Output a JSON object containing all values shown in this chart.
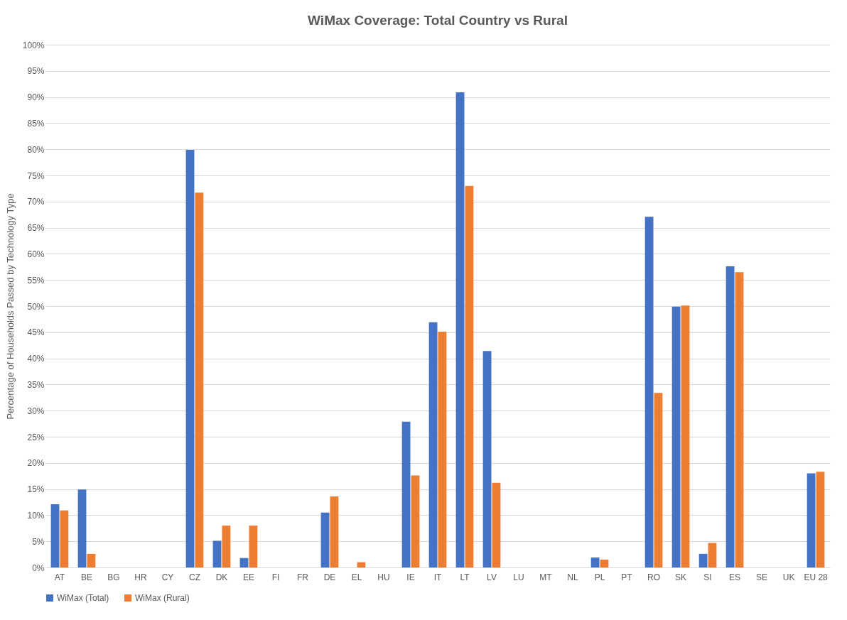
{
  "chart_data": {
    "type": "bar",
    "title": "WiMax Coverage: Total Country vs Rural",
    "ylabel": "Percentage of Households Passed by Technology Type",
    "categories": [
      "AT",
      "BE",
      "BG",
      "HR",
      "CY",
      "CZ",
      "DK",
      "EE",
      "FI",
      "FR",
      "DE",
      "EL",
      "HU",
      "IE",
      "IT",
      "LT",
      "LV",
      "LU",
      "MT",
      "NL",
      "PL",
      "PT",
      "RO",
      "SK",
      "SI",
      "ES",
      "SE",
      "UK",
      "EU 28"
    ],
    "series": [
      {
        "name": "WiMax (Total)",
        "color": "#4472c4",
        "values": [
          12.1,
          14.9,
          0,
          0,
          0,
          79.9,
          5.1,
          1.8,
          0,
          0,
          10.5,
          0,
          0,
          27.9,
          46.9,
          90.9,
          41.4,
          0,
          0,
          0,
          1.9,
          0,
          67.1,
          49.9,
          2.6,
          57.6,
          0,
          0,
          18.0
        ]
      },
      {
        "name": "WiMax (Rural)",
        "color": "#ed7d31",
        "values": [
          10.9,
          2.6,
          0,
          0,
          0,
          71.7,
          8.0,
          8.0,
          0,
          0,
          13.6,
          1.0,
          0,
          17.6,
          45.1,
          73.0,
          16.2,
          0,
          0,
          0,
          1.5,
          0,
          33.4,
          50.1,
          4.7,
          56.5,
          0,
          0,
          18.3
        ]
      }
    ],
    "ylim": [
      0,
      100
    ],
    "yticks": [
      {
        "value": 0,
        "label": "0%"
      },
      {
        "value": 5,
        "label": "5%"
      },
      {
        "value": 10,
        "label": "10%"
      },
      {
        "value": 15,
        "label": "15%"
      },
      {
        "value": 20,
        "label": "20%"
      },
      {
        "value": 25,
        "label": "25%"
      },
      {
        "value": 30,
        "label": "30%"
      },
      {
        "value": 35,
        "label": "35%"
      },
      {
        "value": 40,
        "label": "40%"
      },
      {
        "value": 45,
        "label": "45%"
      },
      {
        "value": 50,
        "label": "50%"
      },
      {
        "value": 55,
        "label": "55%"
      },
      {
        "value": 60,
        "label": "60%"
      },
      {
        "value": 65,
        "label": "65%"
      },
      {
        "value": 70,
        "label": "70%"
      },
      {
        "value": 75,
        "label": "75%"
      },
      {
        "value": 80,
        "label": "80%"
      },
      {
        "value": 85,
        "label": "85%"
      },
      {
        "value": 90,
        "label": "90%"
      },
      {
        "value": 95,
        "label": "95%"
      },
      {
        "value": 100,
        "label": "100%"
      }
    ],
    "grid": "y",
    "legend": "bottom"
  }
}
